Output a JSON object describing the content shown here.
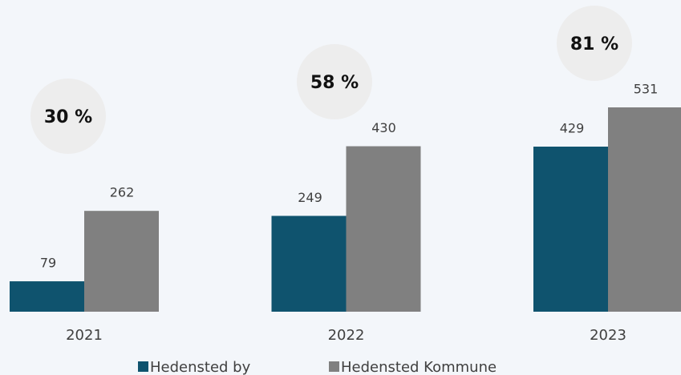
{
  "chart_data": {
    "type": "bar",
    "categories": [
      "2021",
      "2022",
      "2023"
    ],
    "series": [
      {
        "name": "Hedensted by",
        "color": "#0f536e",
        "values": [
          79,
          249,
          429
        ]
      },
      {
        "name": "Hedensted Kommune",
        "color": "#808080",
        "values": [
          262,
          430,
          531
        ]
      }
    ],
    "annotations": [
      "30 %",
      "58 %",
      "81 %"
    ],
    "ylim": [
      0,
      531
    ],
    "grid": false
  }
}
